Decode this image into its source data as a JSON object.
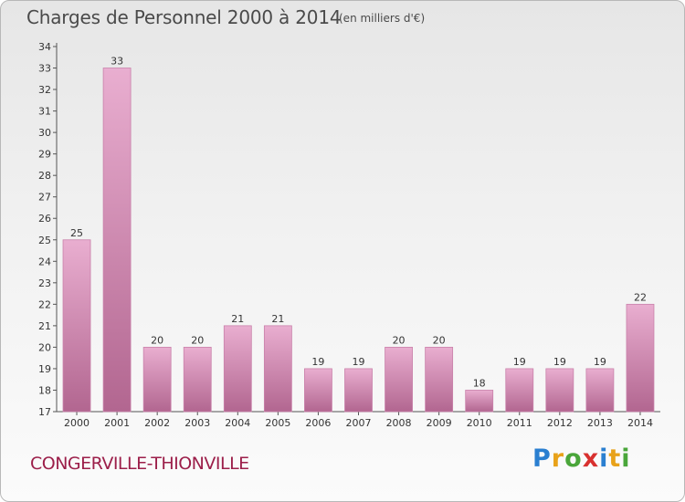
{
  "header": {
    "title": "Charges de Personnel 2000 à 2014",
    "subtitle": "(en milliers d'€)"
  },
  "footer": {
    "commune": "CONGERVILLE-THIONVILLE",
    "logo_letters": [
      "P",
      "r",
      "o",
      "x",
      "i",
      "t",
      "i"
    ]
  },
  "colors": {
    "bar_top": "#e9aed0",
    "bar_bottom": "#b26690",
    "bar_edge": "#c981aa",
    "commune_text": "#9c1f4a"
  },
  "chart_data": {
    "type": "bar",
    "title": "Charges de Personnel 2000 à 2014",
    "subtitle": "(en milliers d'€)",
    "categories": [
      "2000",
      "2001",
      "2002",
      "2003",
      "2004",
      "2005",
      "2006",
      "2007",
      "2008",
      "2009",
      "2010",
      "2011",
      "2012",
      "2013",
      "2014"
    ],
    "values": [
      25,
      33,
      20,
      20,
      21,
      21,
      19,
      19,
      20,
      20,
      18,
      19,
      19,
      19,
      22
    ],
    "data_labels": [
      "25",
      "33",
      "20",
      "20",
      "21",
      "21",
      "19",
      "19",
      "20",
      "20",
      "18",
      "19",
      "19",
      "19",
      "22"
    ],
    "y_ticks": [
      "17",
      "18",
      "19",
      "20",
      "21",
      "22",
      "23",
      "24",
      "25",
      "26",
      "27",
      "28",
      "29",
      "30",
      "31",
      "32",
      "33",
      "34"
    ],
    "ylim": [
      17,
      34
    ],
    "xlabel": "",
    "ylabel": "",
    "grid": false,
    "legend": "none"
  }
}
